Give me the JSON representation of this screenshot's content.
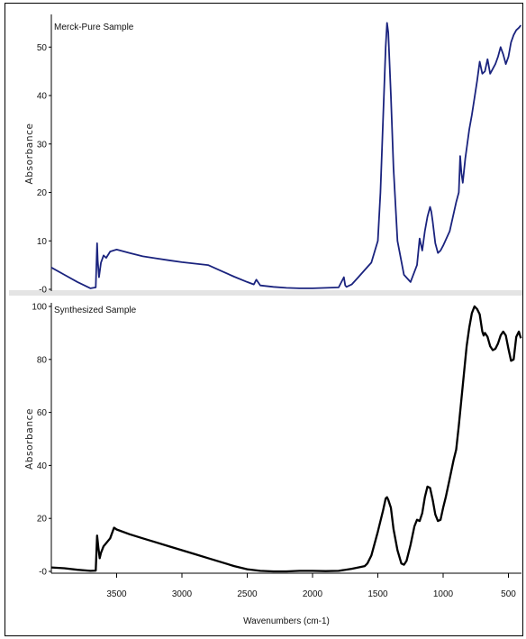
{
  "chart_data": [
    {
      "type": "line",
      "title": "Merck-Pure Sample",
      "xlabel": "",
      "ylabel": "Absorbance",
      "color": "#1a237e",
      "x_reversed": true,
      "xlim": [
        4000,
        400
      ],
      "ylim": [
        0,
        56
      ],
      "yticks": [
        0,
        10,
        20,
        30,
        40,
        50
      ],
      "ytick_labels": [
        "-0",
        "10",
        "20",
        "30",
        "40",
        "50"
      ],
      "x": [
        4000,
        3900,
        3800,
        3700,
        3660,
        3650,
        3645,
        3635,
        3620,
        3600,
        3580,
        3550,
        3500,
        3400,
        3300,
        3200,
        3100,
        3000,
        2900,
        2800,
        2700,
        2600,
        2500,
        2450,
        2430,
        2400,
        2300,
        2200,
        2100,
        2000,
        1900,
        1800,
        1760,
        1750,
        1740,
        1700,
        1650,
        1600,
        1550,
        1500,
        1480,
        1460,
        1440,
        1430,
        1420,
        1400,
        1380,
        1350,
        1300,
        1250,
        1200,
        1180,
        1160,
        1140,
        1120,
        1100,
        1090,
        1080,
        1060,
        1040,
        1020,
        1000,
        950,
        900,
        880,
        870,
        860,
        850,
        830,
        800,
        780,
        760,
        740,
        720,
        700,
        680,
        660,
        640,
        620,
        600,
        580,
        560,
        540,
        520,
        500,
        480,
        460,
        440,
        420,
        405
      ],
      "y": [
        4.5,
        3.0,
        1.5,
        0.2,
        0.4,
        9.5,
        6.0,
        2.5,
        5.5,
        7.0,
        6.5,
        7.8,
        8.2,
        7.5,
        6.8,
        6.4,
        6.0,
        5.6,
        5.3,
        5.0,
        3.8,
        2.6,
        1.5,
        1.0,
        2.0,
        0.8,
        0.5,
        0.3,
        0.2,
        0.2,
        0.3,
        0.4,
        2.5,
        0.8,
        0.5,
        1.0,
        2.5,
        4.0,
        5.5,
        10.0,
        20.0,
        35.0,
        50.0,
        55.0,
        53.0,
        40.0,
        25.0,
        10.0,
        3.0,
        1.5,
        5.0,
        10.5,
        8.0,
        12.0,
        15.0,
        17.0,
        16.0,
        14.0,
        9.5,
        7.5,
        8.0,
        9.0,
        12.0,
        18.0,
        20.0,
        27.5,
        24.0,
        22.0,
        27.0,
        33.0,
        36.0,
        39.5,
        43.0,
        47.0,
        44.5,
        45.0,
        47.5,
        44.5,
        45.5,
        46.5,
        48.0,
        50.0,
        48.5,
        46.5,
        48.0,
        51.0,
        52.5,
        53.5,
        54.0,
        54.5
      ]
    },
    {
      "type": "line",
      "title": "Synthesized Sample",
      "xlabel": "Wavenumbers (cm-1)",
      "ylabel": "Absorbance",
      "color": "#000000",
      "x_reversed": true,
      "xlim": [
        4000,
        400
      ],
      "ylim": [
        0,
        100
      ],
      "xticks": [
        3500,
        3000,
        2500,
        2000,
        1500,
        1000,
        500
      ],
      "yticks": [
        0,
        20,
        40,
        60,
        80,
        100
      ],
      "ytick_labels": [
        "-0",
        "20",
        "40",
        "60",
        "80",
        "100"
      ],
      "x": [
        4000,
        3900,
        3800,
        3700,
        3660,
        3650,
        3640,
        3630,
        3620,
        3600,
        3550,
        3520,
        3500,
        3400,
        3300,
        3200,
        3100,
        3000,
        2900,
        2800,
        2700,
        2600,
        2500,
        2400,
        2300,
        2200,
        2100,
        2000,
        1900,
        1800,
        1700,
        1650,
        1600,
        1580,
        1550,
        1500,
        1460,
        1440,
        1430,
        1420,
        1400,
        1380,
        1350,
        1320,
        1300,
        1280,
        1250,
        1220,
        1200,
        1180,
        1160,
        1140,
        1120,
        1100,
        1080,
        1060,
        1040,
        1020,
        1000,
        980,
        950,
        920,
        900,
        880,
        860,
        840,
        820,
        800,
        780,
        760,
        740,
        720,
        700,
        690,
        680,
        660,
        640,
        620,
        600,
        580,
        560,
        540,
        520,
        500,
        480,
        460,
        440,
        420,
        405
      ],
      "y": [
        1.5,
        1.2,
        0.6,
        0.2,
        0.3,
        13.5,
        9.0,
        5.0,
        7.0,
        9.5,
        12.5,
        16.5,
        15.8,
        14.0,
        12.5,
        11.0,
        9.5,
        8.0,
        6.5,
        5.0,
        3.5,
        2.0,
        0.8,
        0.2,
        0.0,
        0.0,
        0.2,
        0.2,
        0.1,
        0.2,
        1.0,
        1.5,
        2.0,
        3.0,
        6.0,
        15.0,
        23.0,
        27.5,
        28.0,
        27.0,
        24.0,
        16.0,
        8.0,
        3.0,
        2.5,
        4.0,
        10.0,
        17.0,
        19.5,
        19.0,
        22.0,
        28.0,
        32.0,
        31.5,
        27.0,
        21.5,
        19.0,
        19.5,
        24.0,
        28.0,
        35.0,
        42.0,
        46.0,
        55.0,
        65.0,
        75.0,
        85.0,
        92.0,
        97.5,
        100.0,
        99.0,
        97.0,
        90.5,
        89.0,
        90.0,
        88.5,
        85.0,
        83.5,
        84.0,
        86.0,
        89.0,
        90.5,
        89.0,
        84.0,
        79.5,
        80.0,
        88.5,
        90.5,
        88.0
      ]
    }
  ]
}
